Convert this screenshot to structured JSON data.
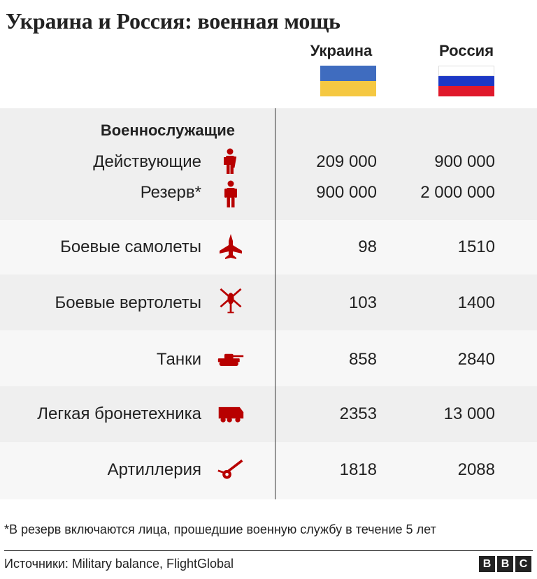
{
  "title": "Украина и Россия: военная мощь",
  "columns": {
    "ukraine": "Украина",
    "russia": "Россия"
  },
  "colors": {
    "icon": "#b80000",
    "ua_blue": "#3f6cbf",
    "ua_yellow": "#f5c842",
    "ru_blue": "#1c38c5",
    "ru_red": "#e0192b"
  },
  "personnel": {
    "heading": "Военнослужащие",
    "active": {
      "label": "Действующие",
      "icon": "soldier-icon",
      "ukraine": "209 000",
      "russia": "900 000"
    },
    "reserve": {
      "label": "Резерв*",
      "icon": "person-icon",
      "ukraine": "900 000",
      "russia": "2 000 000"
    }
  },
  "rows": [
    {
      "label": "Боевые самолеты",
      "icon": "fighter-jet-icon",
      "ukraine": "98",
      "russia": "1510"
    },
    {
      "label": "Боевые вертолеты",
      "icon": "helicopter-icon",
      "ukraine": "103",
      "russia": "1400"
    },
    {
      "label": "Танки",
      "icon": "tank-icon",
      "ukraine": "858",
      "russia": "2840"
    },
    {
      "label": "Легкая бронетехника",
      "icon": "armored-vehicle-icon",
      "ukraine": "2353",
      "russia": "13 000"
    },
    {
      "label": "Артиллерия",
      "icon": "artillery-icon",
      "ukraine": "1818",
      "russia": "2088"
    }
  ],
  "footnote": "*В резерв включаются лица, прошедшие военную службу в течение 5 лет",
  "source": "Источники: Military balance, FlightGlobal",
  "logo": [
    "B",
    "B",
    "C"
  ]
}
